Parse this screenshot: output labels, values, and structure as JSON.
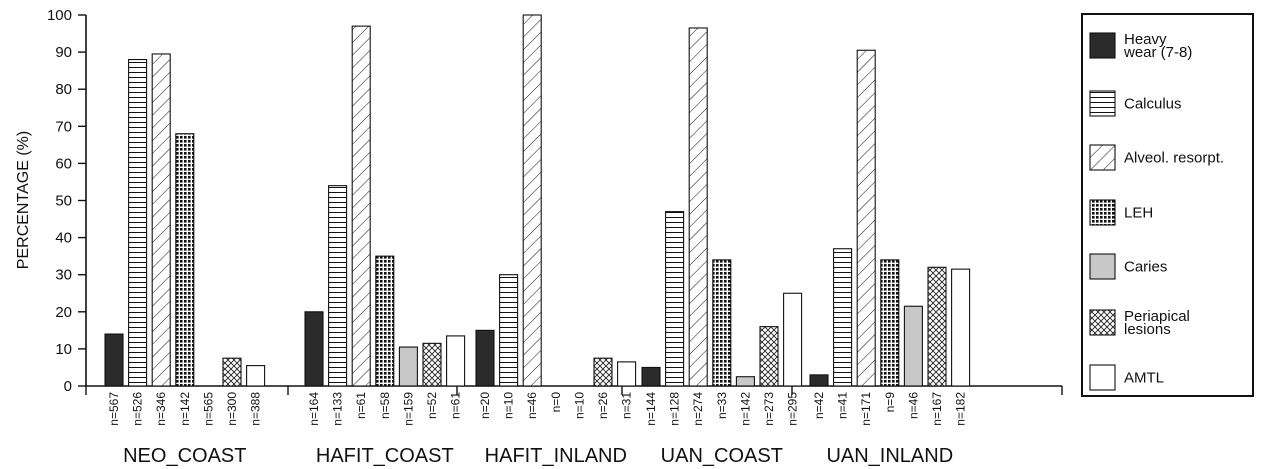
{
  "chart_data": {
    "type": "bar",
    "title": "",
    "xlabel": "",
    "ylabel": "PERCENTAGE (%)",
    "ylim": [
      0,
      100
    ],
    "yticks": [
      0,
      10,
      20,
      30,
      40,
      50,
      60,
      70,
      80,
      90,
      100
    ],
    "grid": false,
    "legend_position": "right",
    "categories": [
      "NEO_COAST",
      "HAFIT_COAST",
      "HAFIT_INLAND",
      "UAN_COAST",
      "UAN_INLAND"
    ],
    "series": [
      {
        "name": "Heavy wear (7-8)",
        "pattern": "solid-dark",
        "values": [
          14,
          20,
          15,
          5,
          3
        ],
        "n": [
          "n=567",
          "n=164",
          "n=20",
          "n=144",
          "n=42"
        ]
      },
      {
        "name": "Calculus",
        "pattern": "horizontal-lines",
        "values": [
          88,
          54,
          30,
          47,
          37
        ],
        "n": [
          "n=526",
          "n=133",
          "n=10",
          "n=128",
          "n=41"
        ]
      },
      {
        "name": "Alveol. resorpt.",
        "pattern": "diagonal-lines",
        "values": [
          89.5,
          97,
          100,
          96.5,
          90.5
        ],
        "n": [
          "n=346",
          "n=61",
          "n=46",
          "n=274",
          "n=171"
        ]
      },
      {
        "name": "LEH",
        "pattern": "checkered",
        "values": [
          68,
          35,
          0,
          34,
          34
        ],
        "n": [
          "n=142",
          "n=58",
          "n=0",
          "n=33",
          "n=9"
        ]
      },
      {
        "name": "Caries",
        "pattern": "light-grey",
        "values": [
          0,
          10.5,
          0,
          2.5,
          21.5
        ],
        "n": [
          "n=565",
          "n=159",
          "n=10",
          "n=142",
          "n=46"
        ]
      },
      {
        "name": "Periapical lesions",
        "pattern": "crosshatch",
        "values": [
          7.5,
          11.5,
          7.5,
          16,
          32
        ],
        "n": [
          "n=300",
          "n=52",
          "n=26",
          "n=273",
          "n=167"
        ]
      },
      {
        "name": "AMTL",
        "pattern": "white",
        "values": [
          5.5,
          13.5,
          6.5,
          25,
          31.5
        ],
        "n": [
          "n=388",
          "n=61",
          "n=31",
          "n=295",
          "n=182"
        ]
      }
    ],
    "legend_lines": [
      [
        "Heavy",
        "wear (7-8)"
      ],
      [
        "Calculus"
      ],
      [
        "Alveol. resorpt."
      ],
      [
        "LEH"
      ],
      [
        "Caries"
      ],
      [
        "Periapical",
        "lesions"
      ],
      [
        "AMTL"
      ]
    ],
    "colors": {
      "dark": "#2b2b2b",
      "light_grey": "#c8c8c8",
      "stroke": "#111111"
    }
  }
}
